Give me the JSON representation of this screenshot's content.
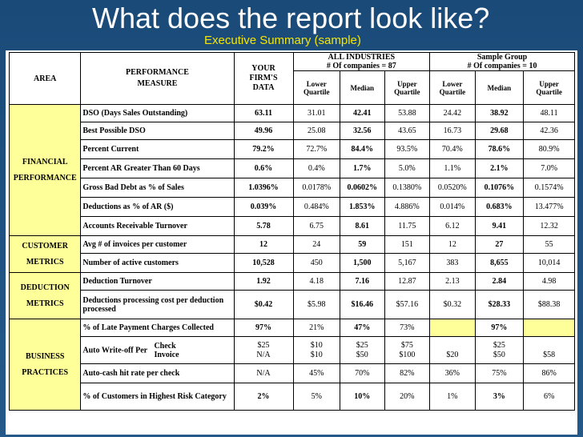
{
  "slide": {
    "title": "What does the report look like?",
    "subtitle": "Executive Summary (sample)"
  },
  "header": {
    "area": "AREA",
    "measure_line1": "PERFORMANCE",
    "measure_line2": "MEASURE",
    "firm_line1": "YOUR",
    "firm_line2": "FIRM'S",
    "firm_line3": "DATA",
    "all_industries_line1": "ALL INDUSTRIES",
    "all_industries_line2": "# Of companies = 87",
    "sample_group_line1": "Sample Group",
    "sample_group_line2": "# Of companies =  10",
    "lower_quartile": "Lower Quartile",
    "median": "Median",
    "upper_quartile": "Upper Quartile"
  },
  "areas": {
    "financial": "FINANCIAL PERFORMANCE",
    "customer": "CUSTOMER METRICS",
    "deduction": "DEDUCTION METRICS",
    "business": "BUSINESS PRACTICES"
  },
  "rows": [
    {
      "measure": "DSO (Days Sales Outstanding)",
      "firm": "63.11",
      "a_lq": "31.01",
      "a_med": "42.41",
      "a_uq": "53.88",
      "s_lq": "24.42",
      "s_med": "38.92",
      "s_uq": "48.11"
    },
    {
      "measure": "Best Possible DSO",
      "firm": "49.96",
      "a_lq": "25.08",
      "a_med": "32.56",
      "a_uq": "43.65",
      "s_lq": "16.73",
      "s_med": "29.68",
      "s_uq": "42.36"
    },
    {
      "measure": "Percent Current",
      "firm": "79.2%",
      "a_lq": "72.7%",
      "a_med": "84.4%",
      "a_uq": "93.5%",
      "s_lq": "70.4%",
      "s_med": "78.6%",
      "s_uq": "80.9%"
    },
    {
      "measure": "Percent AR Greater Than 60 Days",
      "firm": "0.6%",
      "a_lq": "0.4%",
      "a_med": "1.7%",
      "a_uq": "5.0%",
      "s_lq": "1.1%",
      "s_med": "2.1%",
      "s_uq": "7.0%"
    },
    {
      "measure": "Gross Bad Debt as % of Sales",
      "firm": "1.0396%",
      "a_lq": "0.0178%",
      "a_med": "0.0602%",
      "a_uq": "0.1380%",
      "s_lq": "0.0520%",
      "s_med": "0.1076%",
      "s_uq": "0.1574%"
    },
    {
      "measure": "Deductions as % of AR ($)",
      "firm": "0.039%",
      "a_lq": "0.484%",
      "a_med": "1.853%",
      "a_uq": "4.886%",
      "s_lq": "0.014%",
      "s_med": "0.683%",
      "s_uq": "13.477%"
    },
    {
      "measure": "Accounts Receivable Turnover",
      "firm": "5.78",
      "a_lq": "6.75",
      "a_med": "8.61",
      "a_uq": "11.75",
      "s_lq": "6.12",
      "s_med": "9.41",
      "s_uq": "12.32"
    },
    {
      "measure": "Avg # of invoices per customer",
      "firm": "12",
      "a_lq": "24",
      "a_med": "59",
      "a_uq": "151",
      "s_lq": "12",
      "s_med": "27",
      "s_uq": "55"
    },
    {
      "measure": "Number of active customers",
      "firm": "10,528",
      "a_lq": "450",
      "a_med": "1,500",
      "a_uq": "5,167",
      "s_lq": "383",
      "s_med": "8,655",
      "s_uq": "10,014"
    },
    {
      "measure": "Deduction Turnover",
      "firm": "1.92",
      "a_lq": "4.18",
      "a_med": "7.16",
      "a_uq": "12.87",
      "s_lq": "2.13",
      "s_med": "2.84",
      "s_uq": "4.98"
    },
    {
      "measure": "Deductions processing cost per deduction processed",
      "firm": "$0.42",
      "a_lq": "$5.98",
      "a_med": "$16.46",
      "a_uq": "$57.16",
      "s_lq": "$0.32",
      "s_med": "$28.33",
      "s_uq": "$88.38"
    },
    {
      "measure": "% of Late Payment Charges Collected",
      "firm": "97%",
      "a_lq": "21%",
      "a_med": "47%",
      "a_uq": "73%",
      "s_lq": "",
      "s_med": "97%",
      "s_uq": ""
    },
    {
      "measure_a": "Auto Write-off Per",
      "measure_b": "Check",
      "measure_c": "Invoice",
      "firm": "$25",
      "firm2": "N/A",
      "a_lq": "$10",
      "a_lq2": "$10",
      "a_med": "$25",
      "a_med2": "$50",
      "a_uq": "$75",
      "a_uq2": "$100",
      "s_lq": "",
      "s_lq2": "$20",
      "s_med": "$25",
      "s_med2": "$50",
      "s_uq": "",
      "s_uq2": "$58"
    },
    {
      "measure": "Auto-cash hit rate per check",
      "firm": "N/A",
      "a_lq": "45%",
      "a_med": "70%",
      "a_uq": "82%",
      "s_lq": "36%",
      "s_med": "75%",
      "s_uq": "86%"
    },
    {
      "measure": "% of Customers in Highest Risk Category",
      "firm": "2%",
      "a_lq": "5%",
      "a_med": "10%",
      "a_uq": "20%",
      "s_lq": "1%",
      "s_med": "3%",
      "s_uq": "6%"
    }
  ],
  "colors": {
    "background": "#1f4f7a",
    "title": "#ffffff",
    "subtitle": "#f5e600",
    "highlight": "#ffff99"
  }
}
